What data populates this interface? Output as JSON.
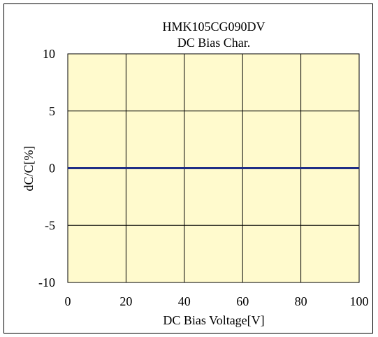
{
  "chart_data": {
    "type": "line",
    "title": "HMK105CG090DV",
    "subtitle": "DC Bias Char.",
    "xlabel": "DC Bias Voltage[V]",
    "ylabel": "dC/C[%]",
    "xlim": [
      0,
      100
    ],
    "ylim": [
      -10,
      10
    ],
    "x_ticks": [
      0,
      20,
      40,
      60,
      80,
      100
    ],
    "y_ticks": [
      10,
      5,
      0,
      -5,
      -10
    ],
    "x_tick_labels": [
      "0",
      "20",
      "40",
      "60",
      "80",
      "100"
    ],
    "y_tick_labels": [
      "10",
      "5",
      "0",
      "-5",
      "-10"
    ],
    "grid": true,
    "series": [
      {
        "x": [
          0,
          20,
          40,
          60,
          80,
          100
        ],
        "values": [
          0,
          0,
          0,
          0,
          0,
          0
        ]
      }
    ],
    "colors": {
      "plot_background": "#FFFACD",
      "grid": "#000000",
      "series_line": "#1F2D86"
    }
  }
}
